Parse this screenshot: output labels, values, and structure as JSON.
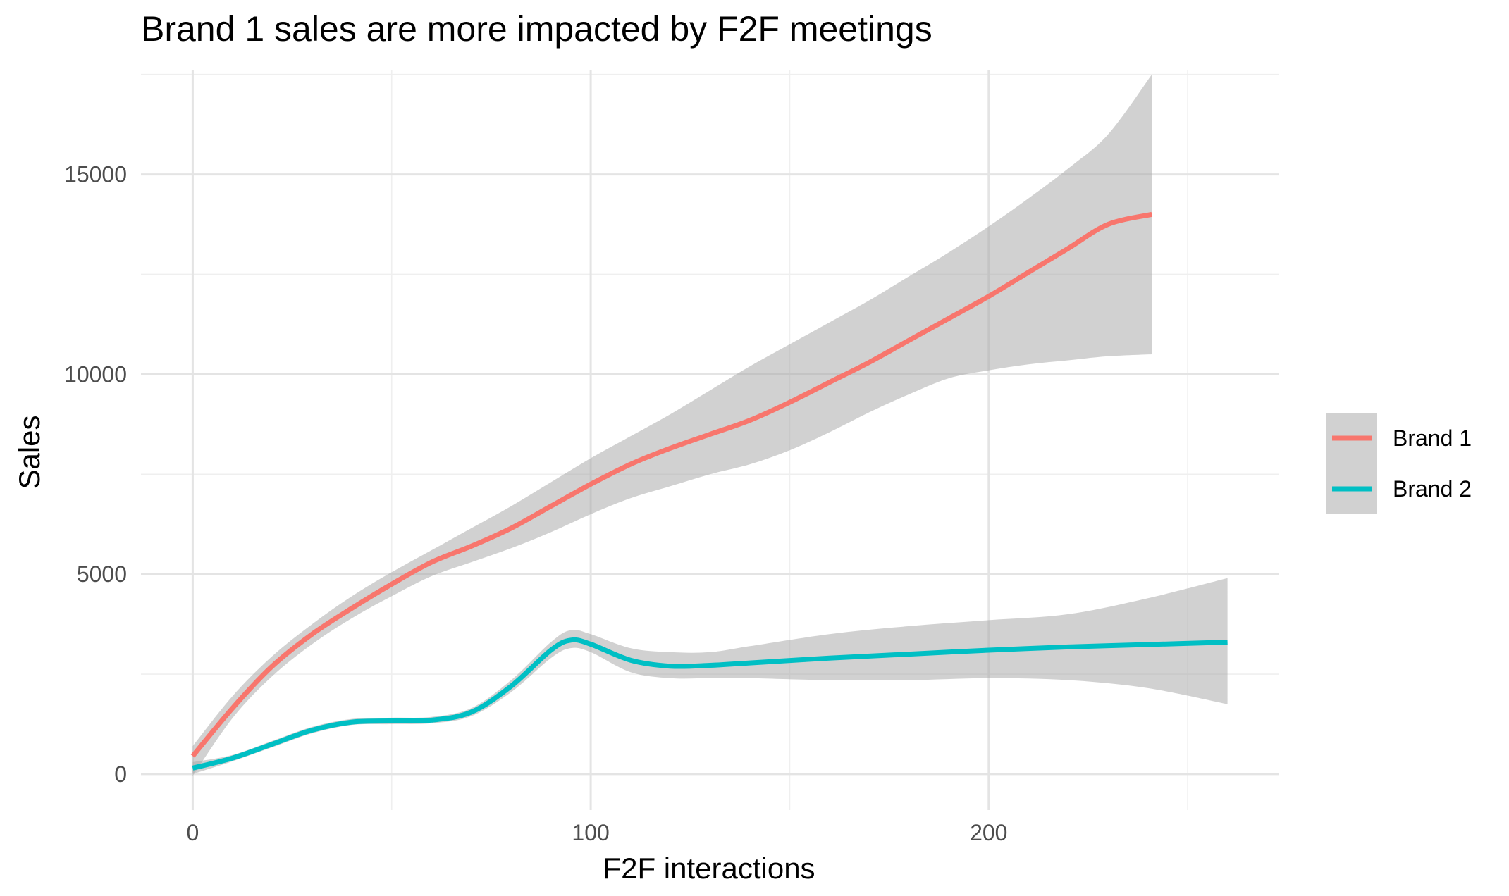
{
  "chart_data": {
    "type": "line",
    "title": "Brand 1 sales are more impacted by F2F meetings",
    "xlabel": "F2F interactions",
    "ylabel": "Sales",
    "xlim": [
      -13,
      273
    ],
    "ylim": [
      -900,
      17600
    ],
    "x_ticks": [
      0,
      100,
      200
    ],
    "x_tick_labels": [
      "0",
      "100",
      "200"
    ],
    "y_ticks": [
      0,
      5000,
      10000,
      15000
    ],
    "y_tick_labels": [
      "0",
      "5000",
      "10000",
      "15000"
    ],
    "x_minor_ticks": [
      50,
      150,
      250
    ],
    "y_minor_ticks": [
      2500,
      7500,
      12500,
      17500
    ],
    "grid": true,
    "legend_position": "right",
    "series": [
      {
        "name": "Brand 1",
        "color": "#F8766D",
        "x": [
          0,
          10,
          20,
          30,
          40,
          50,
          60,
          70,
          80,
          90,
          100,
          110,
          120,
          130,
          140,
          150,
          160,
          170,
          180,
          190,
          200,
          210,
          220,
          230,
          241
        ],
        "y": [
          450,
          1650,
          2700,
          3500,
          4150,
          4750,
          5300,
          5700,
          6150,
          6700,
          7250,
          7750,
          8150,
          8500,
          8850,
          9300,
          9800,
          10300,
          10850,
          11400,
          11950,
          12550,
          13150,
          13750,
          14000
        ],
        "lower": [
          -50,
          1400,
          2450,
          3250,
          3900,
          4450,
          4950,
          5300,
          5650,
          6050,
          6500,
          6900,
          7200,
          7500,
          7750,
          8100,
          8550,
          9050,
          9500,
          9900,
          10100,
          10250,
          10350,
          10450,
          10500
        ],
        "upper": [
          700,
          1950,
          2950,
          3750,
          4450,
          5050,
          5600,
          6150,
          6700,
          7300,
          7900,
          8450,
          9000,
          9600,
          10200,
          10750,
          11300,
          11850,
          12450,
          13050,
          13700,
          14400,
          15150,
          16000,
          17500
        ]
      },
      {
        "name": "Brand 2",
        "color": "#00BFC4",
        "x": [
          0,
          10,
          20,
          30,
          40,
          50,
          60,
          70,
          80,
          90,
          95,
          100,
          110,
          120,
          130,
          140,
          160,
          180,
          200,
          220,
          240,
          260
        ],
        "y": [
          150,
          400,
          750,
          1100,
          1300,
          1330,
          1350,
          1550,
          2200,
          3100,
          3350,
          3250,
          2850,
          2700,
          2720,
          2780,
          2900,
          3000,
          3100,
          3180,
          3240,
          3300
        ],
        "lower": [
          0,
          320,
          670,
          1020,
          1230,
          1250,
          1270,
          1450,
          2050,
          2900,
          3150,
          3050,
          2550,
          2400,
          2400,
          2400,
          2350,
          2350,
          2400,
          2350,
          2150,
          1750
        ],
        "upper": [
          300,
          480,
          830,
          1180,
          1380,
          1410,
          1430,
          1650,
          2350,
          3300,
          3600,
          3500,
          3150,
          3050,
          3050,
          3200,
          3500,
          3700,
          3850,
          4000,
          4400,
          4900
        ]
      }
    ]
  }
}
